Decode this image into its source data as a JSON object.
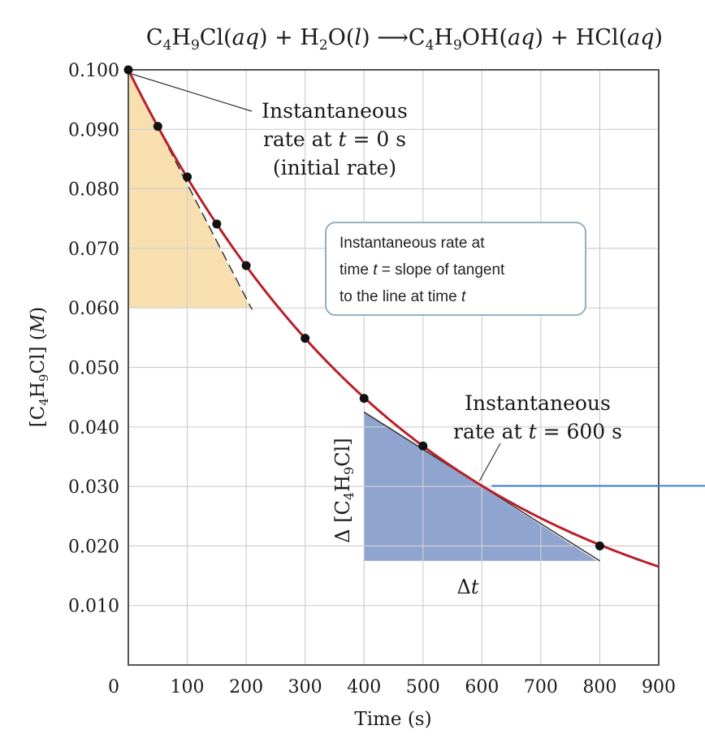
{
  "equation": {
    "reactant1_a": "C",
    "reactant1_s1": "4",
    "reactant1_b": "H",
    "reactant1_s2": "9",
    "reactant1_c": "Cl(",
    "reactant1_phase": "aq",
    "reactant1_end": ")",
    "plus1": "+",
    "reactant2_a": "H",
    "reactant2_s1": "2",
    "reactant2_b": "O(",
    "reactant2_phase": "l",
    "reactant2_end": ")",
    "arrow": "⟶",
    "product1_a": "C",
    "product1_s1": "4",
    "product1_b": "H",
    "product1_s2": "9",
    "product1_c": "OH(",
    "product1_phase": "aq",
    "product1_end": ")",
    "plus2": "+",
    "product2_a": "HCl(",
    "product2_phase": "aq",
    "product2_end": ")"
  },
  "chart_data": {
    "type": "scatter",
    "title": "",
    "xlabel": "Time (s)",
    "ylabel": {
      "open": "[C",
      "s1": "4",
      "mid": "H",
      "s2": "9",
      "close": "Cl] (",
      "unit": "M",
      "end": ")"
    },
    "xlim": [
      0,
      900
    ],
    "ylim": [
      0,
      0.1
    ],
    "x_ticks": [
      "100",
      "200",
      "300",
      "400",
      "500",
      "600",
      "700",
      "800",
      "900"
    ],
    "y_ticks": [
      "0",
      "0.010",
      "0.020",
      "0.030",
      "0.040",
      "0.050",
      "0.060",
      "0.070",
      "0.080",
      "0.090",
      "0.100"
    ],
    "origin_label": "0",
    "grid": true,
    "points": [
      {
        "x": 0,
        "y": 0.1
      },
      {
        "x": 50,
        "y": 0.0905
      },
      {
        "x": 100,
        "y": 0.082
      },
      {
        "x": 150,
        "y": 0.0741
      },
      {
        "x": 200,
        "y": 0.0671
      },
      {
        "x": 300,
        "y": 0.0549
      },
      {
        "x": 400,
        "y": 0.0448
      },
      {
        "x": 500,
        "y": 0.0368
      },
      {
        "x": 800,
        "y": 0.02
      }
    ],
    "curve": {
      "y0": 0.1,
      "decay_per_s": 0.002
    },
    "curve_color": "#b8202a",
    "tangent_initial": {
      "x": [
        0,
        210
      ],
      "y": [
        0.1,
        0.0597
      ]
    },
    "tangent_600": {
      "x": [
        400,
        800
      ],
      "y": [
        0.0425,
        0.0175
      ]
    },
    "triangle_initial": {
      "x": [
        0,
        0,
        207
      ],
      "y": [
        0.1,
        0.06,
        0.06
      ],
      "color": "#f7dfb0"
    },
    "triangle_600": {
      "x": [
        400,
        400,
        795
      ],
      "y": [
        0.0425,
        0.0175,
        0.0175
      ],
      "color": "#8fa4cf"
    },
    "annotations": {
      "initial_line1": "Instantaneous",
      "initial_line2_a": "rate at ",
      "initial_line2_t": "t",
      "initial_line2_b": " = 0 s",
      "initial_line3": "(initial rate)",
      "box_line1": "Instantaneous rate at",
      "box_line2_a": "time ",
      "box_line2_t": "t",
      "box_line2_b": " = slope of tangent",
      "box_line3_a": "to the line at time ",
      "box_line3_t": "t",
      "r600_line1": "Instantaneous",
      "r600_line2_a": "rate at ",
      "r600_line2_t": "t",
      "r600_line2_b": " = 600 s",
      "delta_conc": {
        "delta": "Δ",
        "open": " [C",
        "s1": "4",
        "mid": "H",
        "s2": "9",
        "close": "Cl]"
      },
      "delta_t": {
        "delta": "Δ",
        "t": "t"
      }
    },
    "pointer_600": {
      "x": 600,
      "y": 0.0301
    },
    "callout_color": "#3a7fd0"
  }
}
